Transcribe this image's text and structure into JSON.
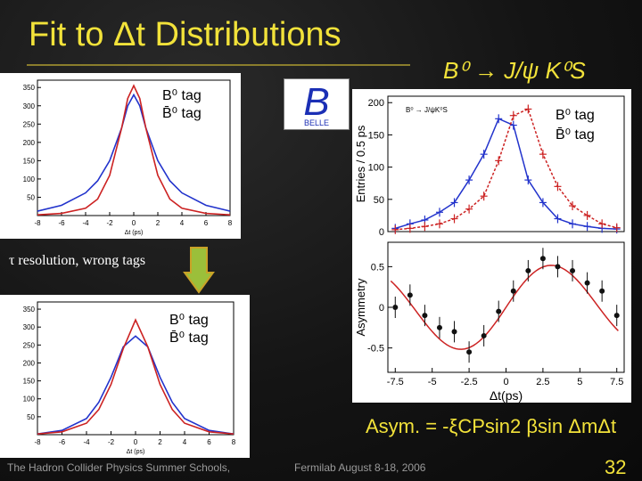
{
  "slide": {
    "title": "Fit to  Δt Distributions",
    "decay": "B⁰ → J/ψ K⁰S",
    "note": "τ resolution, wrong tags",
    "formula": "Asym. = -ξCPsin2 βsin ΔmΔt",
    "footer_left": "The Hadron Collider Physics Summer Schools,",
    "footer_right": "Fermilab August 8-18, 2006",
    "page_number": "32"
  },
  "colors": {
    "title": "#f2e23a",
    "b0_curve": "#2233cc",
    "b0bar_curve": "#cc2222",
    "arrow_fill": "#9bbf3a"
  },
  "logo": {
    "label": "BELLE",
    "letter": "B"
  },
  "chart_data": [
    {
      "type": "line",
      "panel": "top-left",
      "title": "",
      "xlabel": "Δt (ps)",
      "ylabel": "",
      "xlim": [
        -8,
        8
      ],
      "ylim": [
        0,
        370
      ],
      "x_ticks": [
        "-8",
        "-6",
        "-4",
        "-2",
        "0",
        "2",
        "4",
        "6",
        "8"
      ],
      "y_ticks": [
        "50",
        "100",
        "150",
        "200",
        "250",
        "300",
        "350"
      ],
      "legend": [
        "B⁰ tag",
        "B̄⁰ tag"
      ],
      "series": [
        {
          "name": "B⁰ tag",
          "color": "#2233cc",
          "x": [
            -8,
            -6,
            -4,
            -3,
            -2,
            -1,
            -0.5,
            0,
            0.5,
            1,
            2,
            3,
            4,
            6,
            8
          ],
          "y": [
            12,
            28,
            62,
            95,
            150,
            240,
            300,
            330,
            300,
            240,
            150,
            95,
            62,
            28,
            12
          ]
        },
        {
          "name": "B̄⁰ tag",
          "color": "#cc2222",
          "x": [
            -8,
            -6,
            -4,
            -3,
            -2,
            -1,
            -0.5,
            0,
            0.5,
            1,
            2,
            3,
            4,
            6,
            8
          ],
          "y": [
            2,
            6,
            20,
            45,
            110,
            240,
            320,
            355,
            320,
            240,
            110,
            45,
            20,
            6,
            2
          ]
        }
      ]
    },
    {
      "type": "line",
      "panel": "bottom-left",
      "title": "",
      "xlabel": "Δt (ps)",
      "ylabel": "",
      "xlim": [
        -8,
        8
      ],
      "ylim": [
        0,
        370
      ],
      "x_ticks": [
        "-8",
        "-6",
        "-4",
        "-2",
        "0",
        "2",
        "4",
        "6",
        "8"
      ],
      "y_ticks": [
        "50",
        "100",
        "150",
        "200",
        "250",
        "300",
        "350"
      ],
      "legend": [
        "B⁰ tag",
        "B̄⁰ tag"
      ],
      "series": [
        {
          "name": "B⁰ tag",
          "color": "#2233cc",
          "x": [
            -8,
            -6,
            -4,
            -3,
            -2,
            -1,
            0,
            1,
            2,
            3,
            4,
            6,
            8
          ],
          "y": [
            2,
            12,
            45,
            90,
            160,
            245,
            275,
            245,
            160,
            90,
            45,
            12,
            2
          ]
        },
        {
          "name": "B̄⁰ tag",
          "color": "#cc2222",
          "x": [
            -8,
            -6,
            -4,
            -3,
            -2,
            -1,
            0,
            1,
            2,
            3,
            4,
            6,
            8
          ],
          "y": [
            2,
            8,
            32,
            70,
            140,
            240,
            320,
            245,
            140,
            70,
            32,
            8,
            2
          ]
        }
      ]
    },
    {
      "type": "scatter",
      "panel": "right-top",
      "title": "",
      "xlabel": "Δt(ps)",
      "ylabel": "Entries / 0.5 ps",
      "xlim": [
        -8,
        8
      ],
      "ylim": [
        0,
        210
      ],
      "y_ticks": [
        "0",
        "50",
        "100",
        "150",
        "200"
      ],
      "legend": [
        "B⁰ tag",
        "B̄⁰ tag"
      ],
      "inset_text": "B⁰ → J/ψK⁰S",
      "series": [
        {
          "name": "B⁰ tag",
          "color": "#2233cc",
          "x": [
            -7.5,
            -6.5,
            -5.5,
            -4.5,
            -3.5,
            -2.5,
            -1.5,
            -0.5,
            0.5,
            1.5,
            2.5,
            3.5,
            4.5,
            5.5,
            6.5,
            7.5
          ],
          "y": [
            5,
            12,
            18,
            30,
            45,
            80,
            120,
            175,
            165,
            80,
            45,
            20,
            12,
            8,
            5,
            4
          ]
        },
        {
          "name": "B̄⁰ tag",
          "color": "#cc2222",
          "x": [
            -7.5,
            -6.5,
            -5.5,
            -4.5,
            -3.5,
            -2.5,
            -1.5,
            -0.5,
            0.5,
            1.5,
            2.5,
            3.5,
            4.5,
            5.5,
            6.5,
            7.5
          ],
          "y": [
            3,
            5,
            8,
            12,
            20,
            35,
            55,
            110,
            180,
            190,
            120,
            70,
            40,
            25,
            12,
            6
          ]
        }
      ]
    },
    {
      "type": "scatter",
      "panel": "right-bottom",
      "title": "",
      "xlabel": "Δt(ps)",
      "ylabel": "Asymmetry",
      "xlim": [
        -8,
        8
      ],
      "ylim": [
        -0.8,
        0.8
      ],
      "x_ticks": [
        "-7.5",
        "-5",
        "-2.5",
        "0",
        "2.5",
        "5",
        "7.5"
      ],
      "y_ticks": [
        "-0.5",
        "0",
        "0.5"
      ],
      "series": [
        {
          "name": "",
          "color": "#111111",
          "x": [
            -7.5,
            -6.5,
            -5.5,
            -4.5,
            -3.5,
            -2.5,
            -1.5,
            -0.5,
            0.5,
            1.5,
            2.5,
            3.5,
            4.5,
            5.5,
            6.5,
            7.5
          ],
          "y": [
            0.0,
            0.15,
            -0.1,
            -0.25,
            -0.3,
            -0.55,
            -0.35,
            -0.05,
            0.2,
            0.45,
            0.6,
            0.5,
            0.45,
            0.3,
            0.2,
            -0.1
          ]
        }
      ]
    }
  ]
}
